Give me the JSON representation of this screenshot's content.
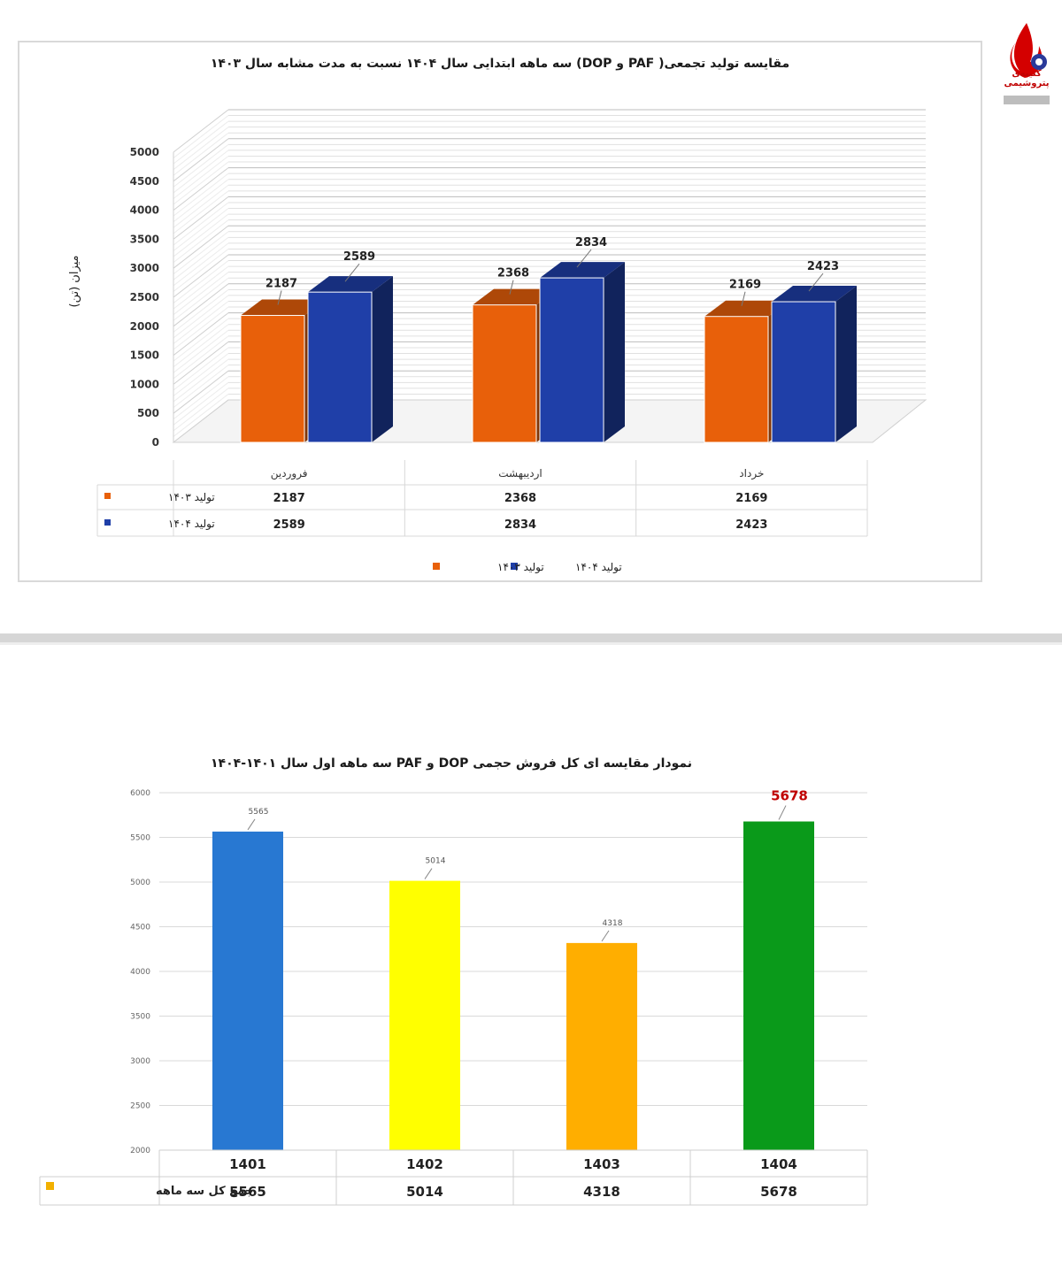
{
  "logo": {
    "caption": "کتیبه‌ی پتروشیمی"
  },
  "chart_data": [
    {
      "type": "bar",
      "title": "مقایسه تولید تجمعی( PAF و DOP) سه ماهه ابتدایی سال ۱۴۰۴ نسبت به مدت مشابه سال ۱۴۰۳",
      "ylabel": "میزان (تن)",
      "xlabel": "",
      "categories": [
        "فروردین",
        "اردیبهشت",
        "خرداد"
      ],
      "series": [
        {
          "name": "تولید ۱۴۰۳",
          "values": [
            2187,
            2368,
            2169
          ],
          "color": "#e8600a"
        },
        {
          "name": "تولید ۱۴۰۴",
          "values": [
            2589,
            2834,
            2423
          ],
          "color": "#1f3fa8"
        }
      ],
      "ylim": [
        0,
        5000
      ],
      "yticks": [
        0,
        500,
        1000,
        1500,
        2000,
        2500,
        3000,
        3500,
        4000,
        4500,
        5000
      ],
      "grid": true,
      "style": "3d-column",
      "legend_position": "bottom",
      "data_table": true
    },
    {
      "type": "bar",
      "title": "نمودار مقایسه ای کل فروش حجمی DOP و PAF سه ماهه اول سال ۱۴۰۱-۱۴۰۴",
      "xlabel": "",
      "ylabel": "",
      "categories": [
        "1401",
        "1402",
        "1403",
        "1404"
      ],
      "series": [
        {
          "name": "جمع کل سه ماهه",
          "values": [
            5565,
            5014,
            4318,
            5678
          ]
        }
      ],
      "bar_colors": [
        "#2878d2",
        "#ffff00",
        "#ffae00",
        "#0a9a1a"
      ],
      "highlight_color": "#c00000",
      "legend_color": "#f2b000",
      "ylim": [
        2000,
        6000
      ],
      "yticks": [
        2000,
        2500,
        3000,
        3500,
        4000,
        4500,
        5000,
        5500,
        6000
      ],
      "grid": true,
      "data_table": true
    }
  ]
}
